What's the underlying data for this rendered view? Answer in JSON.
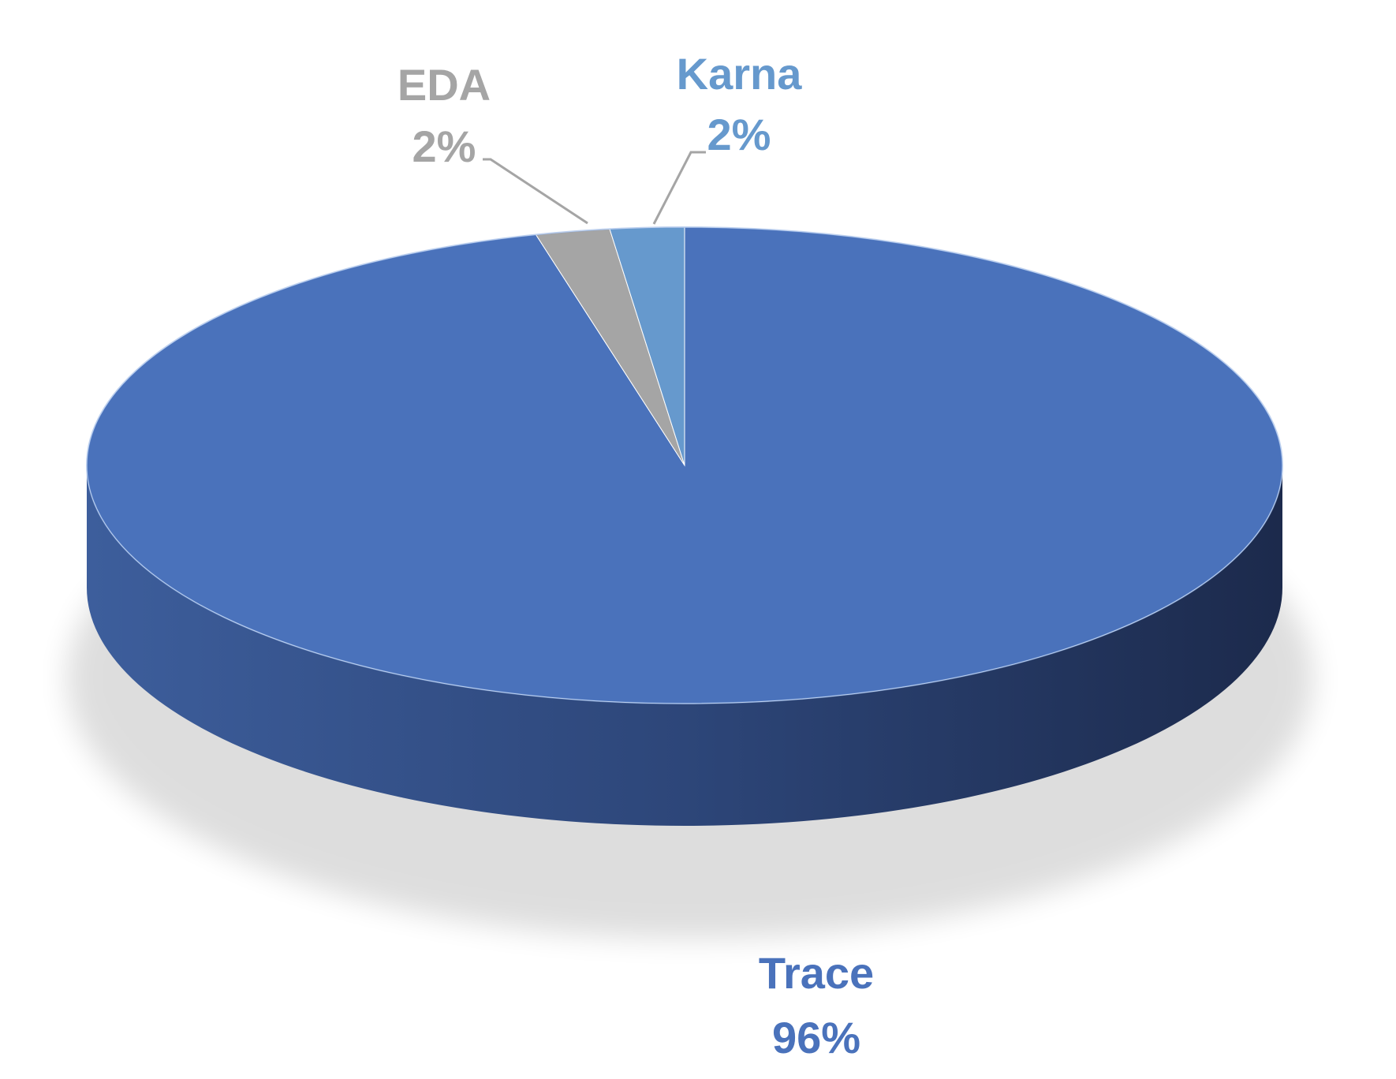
{
  "chart_data": {
    "type": "pie",
    "style": "3d",
    "title": "",
    "slices": [
      {
        "name": "Trace",
        "value": 96,
        "label": "96%",
        "color": "#4a72bb"
      },
      {
        "name": "EDA",
        "value": 2,
        "label": "2%",
        "color": "#a5a5a5"
      },
      {
        "name": "Karna",
        "value": 2,
        "label": "2%",
        "color": "#6699cd"
      }
    ],
    "legend": "none",
    "data_labels": "category and percentage"
  }
}
